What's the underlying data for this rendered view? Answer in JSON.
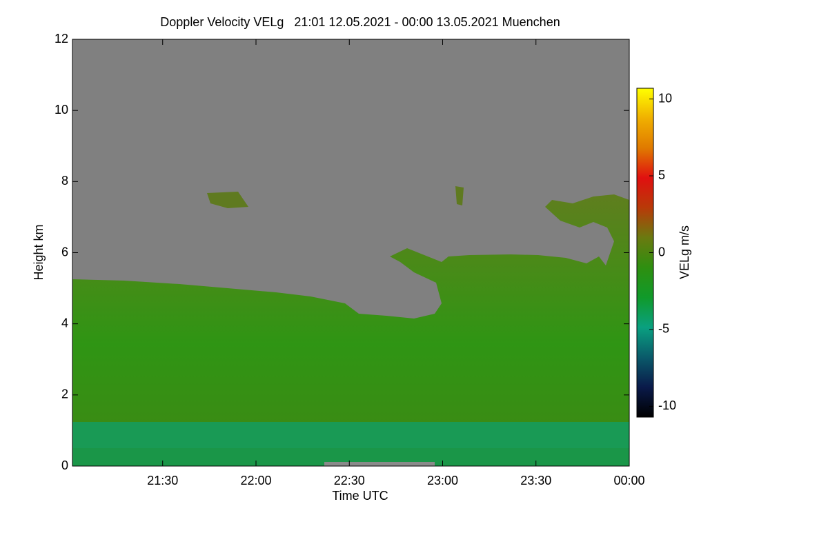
{
  "chart_data": {
    "type": "heatmap",
    "title": "Doppler Velocity VELg   21:01 12.05.2021 - 00:00 13.05.2021 Muenchen",
    "xlabel": "Time UTC",
    "ylabel": "Height km",
    "xlim": [
      1261,
      1440
    ],
    "xticks": [
      {
        "value": 1290,
        "label": "21:30"
      },
      {
        "value": 1320,
        "label": "22:00"
      },
      {
        "value": 1350,
        "label": "22:30"
      },
      {
        "value": 1380,
        "label": "23:00"
      },
      {
        "value": 1410,
        "label": "23:30"
      },
      {
        "value": 1440,
        "label": "00:00"
      }
    ],
    "ylim": [
      0,
      12
    ],
    "yticks": [
      0,
      2,
      4,
      6,
      8,
      10,
      12
    ],
    "colorbar": {
      "label": "VELg m/s",
      "clim": [
        -10.7,
        10.7
      ],
      "ticks": [
        -10,
        -5,
        0,
        5,
        10
      ],
      "colormap": [
        "#000000",
        "#0a1a4a",
        "#0a5a6a",
        "#0aa080",
        "#109a2a",
        "#2e8f10",
        "#6a7a10",
        "#b83a08",
        "#e01010",
        "#e07a00",
        "#f0b000",
        "#ffff00"
      ]
    }
  }
}
